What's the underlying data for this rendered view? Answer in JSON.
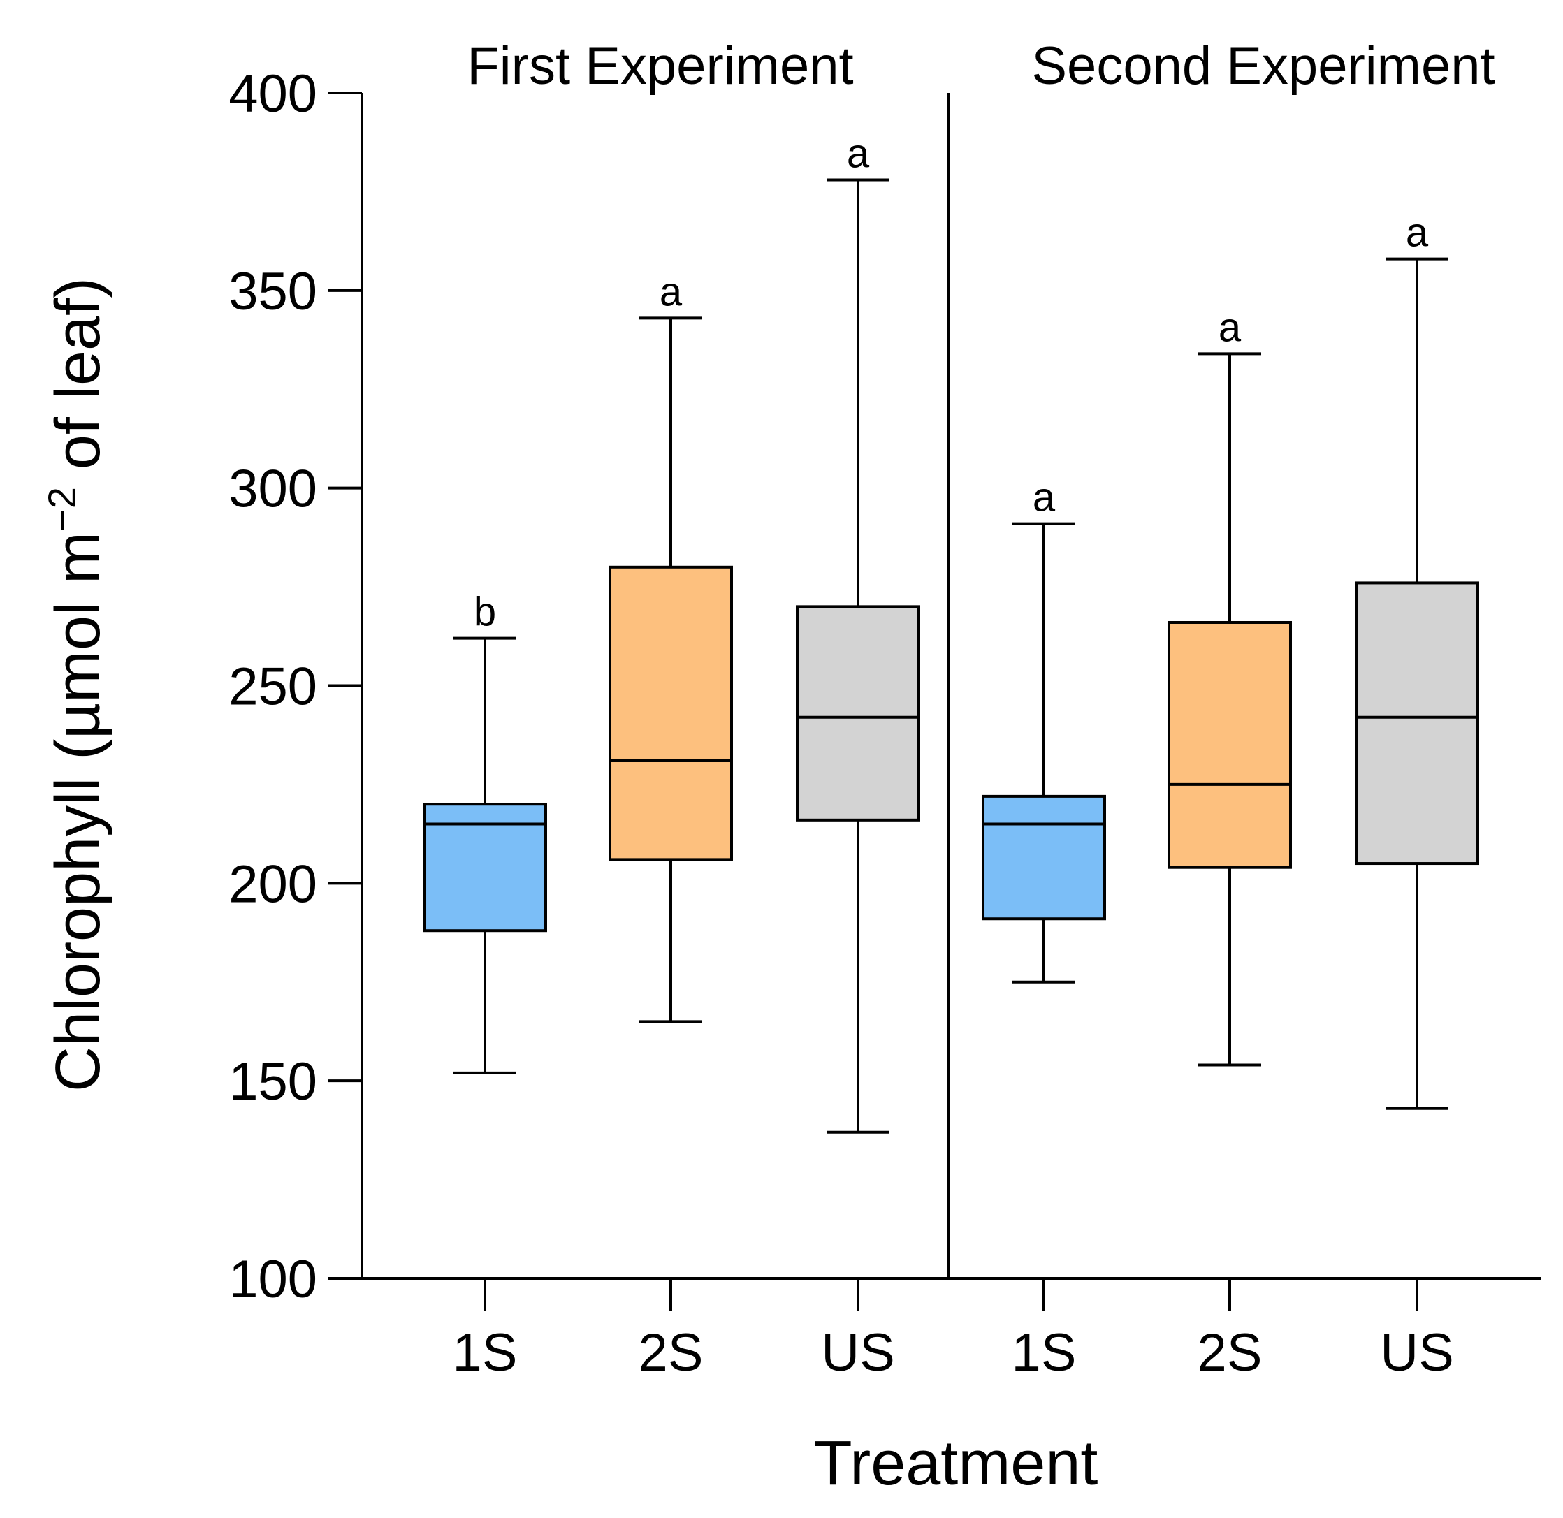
{
  "chart_data": {
    "type": "boxplot",
    "ylabel": "Chlorophyll (µmol m",
    "ylabel_superscript": "−2",
    "ylabel_suffix": " of leaf)",
    "xlabel": "Treatment",
    "ylim": [
      100,
      400
    ],
    "yticks": [
      100,
      150,
      200,
      250,
      300,
      350,
      400
    ],
    "panels": [
      {
        "title": "First Experiment",
        "groups": [
          {
            "category": "1S",
            "color": "#7BBEF7",
            "whisker_low": 152,
            "q1": 188,
            "median": 215,
            "q3": 220,
            "whisker_high": 262,
            "letter": "b"
          },
          {
            "category": "2S",
            "color": "#FDC07E",
            "whisker_low": 165,
            "q1": 206,
            "median": 231,
            "q3": 280,
            "whisker_high": 343,
            "letter": "a"
          },
          {
            "category": "US",
            "color": "#D3D3D3",
            "whisker_low": 137,
            "q1": 216,
            "median": 242,
            "q3": 270,
            "whisker_high": 378,
            "letter": "a"
          }
        ]
      },
      {
        "title": "Second Experiment",
        "groups": [
          {
            "category": "1S",
            "color": "#7BBEF7",
            "whisker_low": 175,
            "q1": 191,
            "median": 215,
            "q3": 222,
            "whisker_high": 291,
            "letter": "a"
          },
          {
            "category": "2S",
            "color": "#FDC07E",
            "whisker_low": 154,
            "q1": 204,
            "median": 225,
            "q3": 266,
            "whisker_high": 334,
            "letter": "a"
          },
          {
            "category": "US",
            "color": "#D3D3D3",
            "whisker_low": 143,
            "q1": 205,
            "median": 242,
            "q3": 276,
            "whisker_high": 358,
            "letter": "a"
          }
        ]
      }
    ]
  }
}
